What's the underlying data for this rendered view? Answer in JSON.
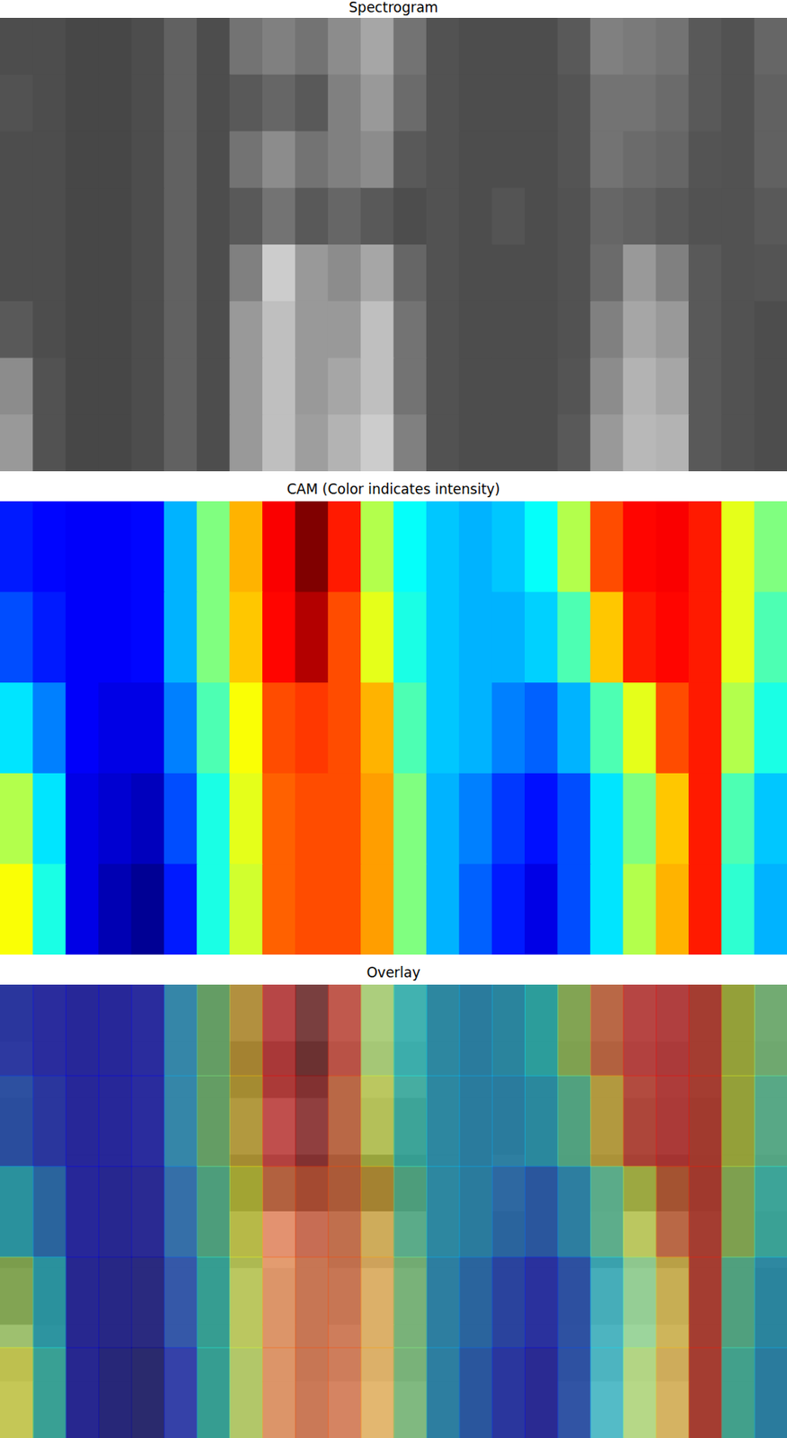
{
  "chart_data": [
    {
      "type": "heatmap",
      "title": "Spectrogram",
      "color": "gray",
      "tick_labels": false,
      "color_range": [
        0,
        1
      ],
      "cells": [
        [
          0.3,
          0.3,
          0.28,
          0.28,
          0.3,
          0.38,
          0.3,
          0.45,
          0.5,
          0.45,
          0.55,
          0.65,
          0.45,
          0.32,
          0.3,
          0.3,
          0.3,
          0.35,
          0.5,
          0.48,
          0.45,
          0.35,
          0.32,
          0.4
        ],
        [
          0.32,
          0.3,
          0.28,
          0.28,
          0.3,
          0.38,
          0.3,
          0.35,
          0.4,
          0.35,
          0.5,
          0.6,
          0.42,
          0.32,
          0.3,
          0.3,
          0.3,
          0.33,
          0.45,
          0.45,
          0.42,
          0.35,
          0.32,
          0.38
        ],
        [
          0.3,
          0.3,
          0.28,
          0.28,
          0.3,
          0.38,
          0.3,
          0.45,
          0.55,
          0.45,
          0.5,
          0.55,
          0.35,
          0.32,
          0.3,
          0.3,
          0.3,
          0.33,
          0.45,
          0.42,
          0.4,
          0.33,
          0.32,
          0.38
        ],
        [
          0.3,
          0.3,
          0.28,
          0.28,
          0.3,
          0.38,
          0.3,
          0.35,
          0.45,
          0.35,
          0.4,
          0.35,
          0.3,
          0.32,
          0.3,
          0.33,
          0.3,
          0.32,
          0.4,
          0.38,
          0.35,
          0.32,
          0.32,
          0.35
        ],
        [
          0.3,
          0.3,
          0.28,
          0.28,
          0.3,
          0.38,
          0.3,
          0.5,
          0.8,
          0.6,
          0.55,
          0.65,
          0.4,
          0.32,
          0.3,
          0.3,
          0.3,
          0.32,
          0.42,
          0.6,
          0.5,
          0.35,
          0.32,
          0.33
        ],
        [
          0.35,
          0.3,
          0.28,
          0.28,
          0.3,
          0.38,
          0.3,
          0.6,
          0.75,
          0.6,
          0.6,
          0.75,
          0.45,
          0.32,
          0.3,
          0.3,
          0.3,
          0.32,
          0.5,
          0.65,
          0.6,
          0.35,
          0.32,
          0.3
        ],
        [
          0.55,
          0.32,
          0.28,
          0.28,
          0.3,
          0.38,
          0.3,
          0.6,
          0.75,
          0.6,
          0.65,
          0.75,
          0.45,
          0.32,
          0.3,
          0.3,
          0.3,
          0.33,
          0.55,
          0.7,
          0.65,
          0.35,
          0.32,
          0.3
        ],
        [
          0.6,
          0.32,
          0.28,
          0.28,
          0.3,
          0.38,
          0.3,
          0.6,
          0.75,
          0.62,
          0.7,
          0.8,
          0.5,
          0.32,
          0.3,
          0.3,
          0.3,
          0.35,
          0.6,
          0.72,
          0.7,
          0.35,
          0.32,
          0.3
        ]
      ]
    },
    {
      "type": "heatmap",
      "title": "CAM (Color indicates intensity)",
      "color": "jet",
      "tick_labels": false,
      "color_range": [
        0,
        1
      ],
      "cells": [
        [
          0.15,
          0.13,
          0.12,
          0.12,
          0.13,
          0.3,
          0.5,
          0.7,
          0.88,
          1.0,
          0.85,
          0.55,
          0.38,
          0.32,
          0.3,
          0.32,
          0.38,
          0.55,
          0.8,
          0.87,
          0.88,
          0.85,
          0.6,
          0.5
        ],
        [
          0.2,
          0.15,
          0.12,
          0.12,
          0.13,
          0.3,
          0.5,
          0.68,
          0.87,
          0.95,
          0.8,
          0.6,
          0.4,
          0.32,
          0.3,
          0.3,
          0.33,
          0.45,
          0.68,
          0.85,
          0.87,
          0.85,
          0.6,
          0.45
        ],
        [
          0.35,
          0.25,
          0.12,
          0.1,
          0.1,
          0.25,
          0.45,
          0.62,
          0.8,
          0.82,
          0.8,
          0.7,
          0.45,
          0.32,
          0.3,
          0.25,
          0.22,
          0.3,
          0.45,
          0.6,
          0.8,
          0.85,
          0.55,
          0.4
        ],
        [
          0.55,
          0.35,
          0.1,
          0.08,
          0.06,
          0.2,
          0.4,
          0.6,
          0.78,
          0.8,
          0.8,
          0.72,
          0.5,
          0.3,
          0.25,
          0.18,
          0.14,
          0.2,
          0.35,
          0.5,
          0.68,
          0.85,
          0.45,
          0.32
        ],
        [
          0.62,
          0.4,
          0.1,
          0.05,
          0.02,
          0.15,
          0.4,
          0.58,
          0.78,
          0.8,
          0.8,
          0.72,
          0.5,
          0.3,
          0.22,
          0.15,
          0.1,
          0.2,
          0.35,
          0.55,
          0.7,
          0.85,
          0.42,
          0.3
        ]
      ]
    },
    {
      "type": "overlay",
      "title": "Overlay",
      "tick_labels": false
    }
  ]
}
